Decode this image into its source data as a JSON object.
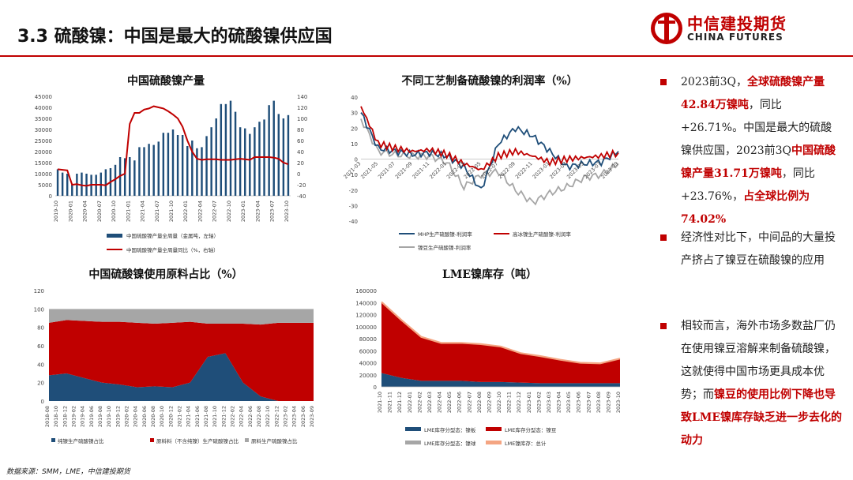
{
  "header": {
    "title": "3.3 硫酸镍：中国是最大的硫酸镍供应国",
    "logo_zh": "中信建投期货",
    "logo_en": "CHINA FUTURES"
  },
  "colors": {
    "red": "#c00000",
    "blue": "#1f4e79",
    "grey": "#a6a6a6",
    "orange": "#f4a582"
  },
  "charts": {
    "c1": {
      "title": "中国硫酸镍产量",
      "left_ticks": [
        "0",
        "5000",
        "10000",
        "15000",
        "20000",
        "25000",
        "30000",
        "35000",
        "40000",
        "45000"
      ],
      "right_ticks": [
        "-40",
        "-20",
        "0",
        "20",
        "40",
        "60",
        "80",
        "100",
        "120",
        "140"
      ],
      "x_ticks": [
        "2019-10",
        "2020-01",
        "2020-04",
        "2020-07",
        "2020-10",
        "2021-01",
        "2021-04",
        "2021-07",
        "2021-10",
        "2022-01",
        "2022-04",
        "2022-07",
        "2022-10",
        "2023-01",
        "2023-04",
        "2023-07",
        "2023-10"
      ],
      "legend_bar": "中国硫酸镍产量全周量（金属吨，左轴）",
      "legend_line": "中国硫酸镍产量全周量同比（%，右轴）"
    },
    "c2": {
      "title": "不同工艺制备硫酸镍的利润率（%）",
      "y_ticks": [
        "40",
        "30",
        "20",
        "10",
        "0",
        "-10",
        "-20",
        "-30",
        "-40"
      ],
      "x_ticks": [
        "2021-03",
        "2021-05",
        "2021-07",
        "2021-09",
        "2021-11",
        "2022-01",
        "2022-03",
        "2022-05",
        "2022-07",
        "2022-09",
        "2022-11",
        "2023-01",
        "2023-03",
        "2023-05",
        "2023-07",
        "2023-09"
      ],
      "legend": [
        "MHP生产硫酸镍-利润率",
        "高冰镍生产硫酸镍-利润率",
        "镍豆生产硫酸镍-利润率"
      ]
    },
    "c3": {
      "title": "中国硫酸镍使用原料占比（%）",
      "y_ticks": [
        "0",
        "20",
        "40",
        "60",
        "80",
        "100",
        "120"
      ],
      "x_ticks": [
        "2018-08",
        "2018-10",
        "2018-12",
        "2019-02",
        "2019-04",
        "2019-06",
        "2019-08",
        "2019-10",
        "2019-12",
        "2020-02",
        "2020-04",
        "2020-06",
        "2020-08",
        "2020-10",
        "2020-12",
        "2021-02",
        "2021-04",
        "2021-06",
        "2021-08",
        "2021-10",
        "2021-12",
        "2022-02",
        "2022-04",
        "2022-06",
        "2022-08",
        "2022-10",
        "2022-12",
        "2023-02",
        "2023-04",
        "2023-06",
        "2023-09"
      ],
      "legend": [
        "纯镍生产硫酸镍占比",
        "原料料（不含纯镍）生产硫酸镍占比",
        "原料生产硫酸镍占比"
      ]
    },
    "c4": {
      "title": "LME镍库存（吨）",
      "y_ticks": [
        "0",
        "20000",
        "40000",
        "60000",
        "80000",
        "100000",
        "120000",
        "140000",
        "160000"
      ],
      "x_ticks": [
        "2021-10",
        "2021-11",
        "2021-12",
        "2022-01",
        "2022-02",
        "2022-03",
        "2022-04",
        "2022-05",
        "2022-06",
        "2022-07",
        "2022-08",
        "2022-09",
        "2022-10",
        "2022-11",
        "2022-12",
        "2023-01",
        "2023-02",
        "2023-03",
        "2023-04",
        "2023-05",
        "2023-06",
        "2023-07",
        "2023-08",
        "2023-09",
        "2023-10"
      ],
      "legend": [
        "LME库存分型态：镍板",
        "LME库存分型态：镍豆",
        "LME库存分型态：镍球",
        "LME镍库存：总计"
      ]
    }
  },
  "chart_data": [
    {
      "type": "bar",
      "title": "中国硫酸镍产量",
      "categories": [
        "2019-10",
        "2019-11",
        "2019-12",
        "2020-01",
        "2020-02",
        "2020-03",
        "2020-04",
        "2020-05",
        "2020-06",
        "2020-07",
        "2020-08",
        "2020-09",
        "2020-10",
        "2020-11",
        "2020-12",
        "2021-01",
        "2021-02",
        "2021-03",
        "2021-04",
        "2021-05",
        "2021-06",
        "2021-07",
        "2021-08",
        "2021-09",
        "2021-10",
        "2021-11",
        "2021-12",
        "2022-01",
        "2022-02",
        "2022-03",
        "2022-04",
        "2022-05",
        "2022-06",
        "2022-07",
        "2022-08",
        "2022-09",
        "2022-10",
        "2022-11",
        "2022-12",
        "2023-01",
        "2023-02",
        "2023-03",
        "2023-04",
        "2023-05",
        "2023-06",
        "2023-07",
        "2023-08",
        "2023-09",
        "2023-10"
      ],
      "series": [
        {
          "name": "中国硫酸镍产量全周量（金属吨，左轴）",
          "values": [
            12000,
            10500,
            10000,
            5000,
            10000,
            10500,
            10000,
            9500,
            9500,
            10500,
            12000,
            12500,
            14000,
            17500,
            17000,
            17500,
            16000,
            22000,
            22000,
            23500,
            23000,
            24500,
            28500,
            28500,
            30000,
            27500,
            27500,
            22500,
            25000,
            21500,
            22000,
            27000,
            31000,
            35000,
            41500,
            41500,
            43000,
            38000,
            31000,
            30500,
            28000,
            31000,
            33500,
            34500,
            41000,
            43000,
            37000,
            35000,
            36500
          ]
        },
        {
          "name": "中国硫酸镍产量全周量同比（%，右轴）",
          "axis": "right",
          "values": [
            8,
            7,
            6,
            -20,
            -19,
            -21,
            -22,
            -20,
            -20,
            -20,
            -21,
            -15,
            -10,
            -4,
            0,
            90,
            110,
            110,
            116,
            118,
            122,
            120,
            118,
            113,
            107,
            100,
            85,
            60,
            40,
            27,
            25,
            26,
            26,
            26,
            25,
            25,
            25,
            26,
            27,
            26,
            25,
            30,
            30,
            30,
            30,
            29,
            27,
            20,
            17
          ]
        }
      ],
      "ylim": [
        0,
        45000
      ],
      "ylim_right": [
        -40,
        140
      ]
    },
    {
      "type": "line",
      "title": "不同工艺制备硫酸镍的利润率（%）",
      "ylim": [
        -40,
        40
      ],
      "x": [
        "2021-03",
        "2021-05",
        "2021-07",
        "2021-09",
        "2021-11",
        "2022-01",
        "2022-03",
        "2022-05",
        "2022-07",
        "2022-09",
        "2022-11",
        "2023-01",
        "2023-03",
        "2023-05",
        "2023-07",
        "2023-09"
      ],
      "series": [
        {
          "name": "MHP生产硫酸镍-利润率",
          "values": [
            30,
            7,
            5,
            3,
            4,
            2,
            -5,
            -20,
            10,
            20,
            15,
            5,
            -5,
            -3,
            -2,
            5
          ]
        },
        {
          "name": "高冰镍生产硫酸镍-利润率",
          "values": [
            34,
            10,
            7,
            5,
            6,
            3,
            -3,
            -7,
            2,
            5,
            2,
            -2,
            0,
            1,
            2,
            4
          ]
        },
        {
          "name": "镍豆生产硫酸镍-利润率",
          "values": [
            26,
            5,
            3,
            2,
            2,
            -2,
            -18,
            -10,
            -8,
            -20,
            -28,
            -22,
            -18,
            -12,
            -10,
            -3
          ]
        }
      ]
    },
    {
      "type": "area",
      "title": "中国硫酸镍使用原料占比（%）",
      "ylim": [
        0,
        120
      ],
      "x": [
        "2018-08",
        "2018-12",
        "2019-04",
        "2019-08",
        "2019-12",
        "2020-04",
        "2020-08",
        "2020-12",
        "2021-04",
        "2021-08",
        "2021-12",
        "2022-04",
        "2022-08",
        "2022-12",
        "2023-04",
        "2023-09"
      ],
      "series": [
        {
          "name": "纯镍生产硫酸镍占比",
          "values": [
            28,
            30,
            25,
            20,
            18,
            15,
            16,
            15,
            20,
            48,
            52,
            20,
            5,
            0,
            0,
            0
          ]
        },
        {
          "name": "原料料（不含纯镍）生产硫酸镍占比",
          "values": [
            57,
            58,
            62,
            66,
            68,
            70,
            68,
            70,
            66,
            36,
            32,
            64,
            78,
            85,
            85,
            85
          ]
        },
        {
          "name": "原料生产硫酸镍占比",
          "values": [
            15,
            12,
            13,
            14,
            14,
            15,
            16,
            15,
            14,
            16,
            16,
            16,
            17,
            15,
            15,
            15
          ]
        }
      ]
    },
    {
      "type": "area",
      "title": "LME镍库存（吨）",
      "ylim": [
        0,
        160000
      ],
      "x": [
        "2021-10",
        "2021-12",
        "2022-02",
        "2022-04",
        "2022-06",
        "2022-08",
        "2022-10",
        "2022-12",
        "2023-02",
        "2023-04",
        "2023-06",
        "2023-08",
        "2023-10"
      ],
      "series": [
        {
          "name": "LME库存分型态：镍板",
          "values": [
            23000,
            15000,
            10000,
            10000,
            10000,
            8000,
            8000,
            7000,
            6000,
            6000,
            6000,
            6000,
            6000
          ]
        },
        {
          "name": "LME库存分型态：镍豆",
          "values": [
            117000,
            95000,
            72000,
            62000,
            62000,
            62000,
            58000,
            48000,
            44000,
            38000,
            33000,
            32000,
            40000
          ]
        },
        {
          "name": "LME库存分型态：镍球",
          "values": [
            1000,
            1000,
            1000,
            1000,
            1000,
            1000,
            1000,
            1000,
            1000,
            1000,
            1000,
            1000,
            1000
          ]
        },
        {
          "name": "LME镍库存：总计",
          "values": [
            141000,
            111000,
            83000,
            73000,
            73000,
            71000,
            67000,
            56000,
            51000,
            45000,
            40000,
            39000,
            47000
          ]
        }
      ]
    }
  ],
  "bullets": [
    {
      "parts": [
        {
          "t": "2023前3Q，",
          "r": false
        },
        {
          "t": "全球硫酸镍产量42.84万镍吨",
          "r": true
        },
        {
          "t": "，同比+26.71%。中国是最大的硫酸镍供应国，2023前3Q",
          "r": false
        },
        {
          "t": "中国硫酸镍产量31.71万镍吨",
          "r": true
        },
        {
          "t": "，同比+23.76%，",
          "r": false
        },
        {
          "t": "占全球比例为74.02%",
          "r": true
        }
      ]
    },
    {
      "parts": [
        {
          "t": "经济性对比下，中间品的大量投产挤占了镍豆在硫酸镍的应用",
          "r": false
        }
      ]
    },
    {
      "parts": [
        {
          "t": "相较而言，海外市场多数盐厂仍在使用镍豆溶解来制备硫酸镍，这就使得中国市场更具成本优势；而",
          "r": false
        },
        {
          "t": "镍豆的使用比例下降也导致LME镍库存缺乏进一步去化的动力",
          "r": true
        }
      ]
    }
  ],
  "source": "数据来源：SMM，LME，中信建投期货"
}
